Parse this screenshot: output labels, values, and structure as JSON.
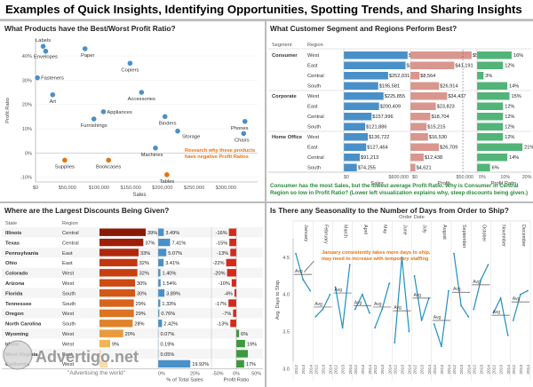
{
  "page_title": "Examples of Quick Insights, Identifying Opportunities, Spotting Trends, and Sharing Insights",
  "colors": {
    "blue": "#4a90c8",
    "orange": "#e8730c",
    "pink": "#d9968e",
    "green": "#52b478",
    "dark_red": "#a5260e"
  },
  "chart_data": [
    {
      "type": "scatter",
      "title": "What Products have the Best/Worst Profit Ratio?",
      "xlabel": "Sales",
      "ylabel": "Profit Ratio",
      "xlim": [
        0,
        350000
      ],
      "ylim": [
        -0.12,
        0.47
      ],
      "xticks": [
        "$0",
        "$50,000",
        "$100,000",
        "$150,000",
        "$200,000",
        "$250,000",
        "$300,000"
      ],
      "yticks": [
        "40%",
        "30%",
        "20%",
        "10%",
        "0%",
        "-10%"
      ],
      "annotation": "Research why these products have negative Profit Ratios",
      "points": [
        {
          "label": "Labels",
          "x": 12000,
          "y": 0.44,
          "color": "blue"
        },
        {
          "label": "Envelopes",
          "x": 16000,
          "y": 0.42,
          "color": "blue"
        },
        {
          "label": "Paper",
          "x": 78000,
          "y": 0.43,
          "color": "blue"
        },
        {
          "label": "Fasteners",
          "x": 3000,
          "y": 0.31,
          "color": "blue"
        },
        {
          "label": "Art",
          "x": 27000,
          "y": 0.24,
          "color": "blue"
        },
        {
          "label": "Copiers",
          "x": 149000,
          "y": 0.37,
          "color": "blue"
        },
        {
          "label": "Accessories",
          "x": 167000,
          "y": 0.25,
          "color": "blue"
        },
        {
          "label": "Appliances",
          "x": 107000,
          "y": 0.17,
          "color": "blue"
        },
        {
          "label": "Furnishings",
          "x": 92000,
          "y": 0.14,
          "color": "blue"
        },
        {
          "label": "Binders",
          "x": 204000,
          "y": 0.15,
          "color": "blue"
        },
        {
          "label": "Storage",
          "x": 224000,
          "y": 0.09,
          "color": "blue"
        },
        {
          "label": "Phones",
          "x": 330000,
          "y": 0.13,
          "color": "blue"
        },
        {
          "label": "Chairs",
          "x": 328000,
          "y": 0.08,
          "color": "blue"
        },
        {
          "label": "Machines",
          "x": 189000,
          "y": 0.02,
          "color": "blue"
        },
        {
          "label": "Supplies",
          "x": 46000,
          "y": -0.03,
          "color": "orange"
        },
        {
          "label": "Bookcases",
          "x": 115000,
          "y": -0.03,
          "color": "orange"
        },
        {
          "label": "Tables",
          "x": 207000,
          "y": -0.09,
          "color": "orange"
        }
      ]
    },
    {
      "type": "bar",
      "title": "What Customer Segment and Regions Perform Best?",
      "columns": [
        "Segment",
        "Region",
        "Sales",
        "Profit",
        "Profit Ratio"
      ],
      "sales_ticks": [
        "$0",
        "$600,000"
      ],
      "profit_ticks": [
        "$0",
        "$50,000"
      ],
      "ratio_ticks": [
        "0%",
        "10%",
        "20%"
      ],
      "rows": [
        {
          "segment": "Consumer",
          "region": "West",
          "sales": 362881,
          "sales_label": "$362,881",
          "profit": 57451,
          "profit_label": "$57,451",
          "ratio": 0.16,
          "ratio_label": "16%"
        },
        {
          "segment": "",
          "region": "East",
          "sales": 350908,
          "sales_label": "$350,908",
          "profit": 41191,
          "profit_label": "$41,191",
          "ratio": 0.12,
          "ratio_label": "12%"
        },
        {
          "segment": "",
          "region": "Central",
          "sales": 252031,
          "sales_label": "$252,031",
          "profit": 8564,
          "profit_label": "$8,564",
          "ratio": 0.03,
          "ratio_label": "3%"
        },
        {
          "segment": "",
          "region": "South",
          "sales": 195581,
          "sales_label": "$195,581",
          "profit": 26914,
          "profit_label": "$26,914",
          "ratio": 0.14,
          "ratio_label": "14%"
        },
        {
          "segment": "Corporate",
          "region": "West",
          "sales": 225855,
          "sales_label": "$225,855",
          "profit": 34437,
          "profit_label": "$34,437",
          "ratio": 0.15,
          "ratio_label": "15%"
        },
        {
          "segment": "",
          "region": "East",
          "sales": 200409,
          "sales_label": "$200,409",
          "profit": 23823,
          "profit_label": "$23,823",
          "ratio": 0.12,
          "ratio_label": "12%"
        },
        {
          "segment": "",
          "region": "Central",
          "sales": 157996,
          "sales_label": "$157,996",
          "profit": 18704,
          "profit_label": "$18,704",
          "ratio": 0.12,
          "ratio_label": "12%"
        },
        {
          "segment": "",
          "region": "South",
          "sales": 121886,
          "sales_label": "$121,886",
          "profit": 15215,
          "profit_label": "$15,215",
          "ratio": 0.12,
          "ratio_label": "12%"
        },
        {
          "segment": "Home Office",
          "region": "West",
          "sales": 136722,
          "sales_label": "$136,722",
          "profit": 16530,
          "profit_label": "$16,530",
          "ratio": 0.12,
          "ratio_label": "12%"
        },
        {
          "segment": "",
          "region": "East",
          "sales": 127464,
          "sales_label": "$127,464",
          "profit": 26709,
          "profit_label": "$26,709",
          "ratio": 0.21,
          "ratio_label": "21%"
        },
        {
          "segment": "",
          "region": "Central",
          "sales": 91213,
          "sales_label": "$91,213",
          "profit": 12438,
          "profit_label": "$12,438",
          "ratio": 0.14,
          "ratio_label": "14%"
        },
        {
          "segment": "",
          "region": "South",
          "sales": 74255,
          "sales_label": "$74,255",
          "profit": 4621,
          "profit_label": "$4,621",
          "ratio": 0.06,
          "ratio_label": "6%"
        }
      ],
      "note": "Consumer has the most Sales, but the lowest average Profit Ratio. Why is Consumer in Central Region so low in Profit Ratio? (Lower left visualization explains why, steep discounts being given.)"
    },
    {
      "type": "bar",
      "title": "Where are the Largest Discounts Being Given?",
      "columns": [
        "State",
        "Region",
        "Discount",
        "% of Total Sales",
        "Profit Ratio"
      ],
      "pct_ticks": [
        "0%",
        "20%"
      ],
      "ratio_ticks": [
        "-50%",
        "0%",
        "50%"
      ],
      "rows": [
        {
          "state": "Illinois",
          "region": "Central",
          "discount": 0.39,
          "discount_label": "39%",
          "pct": 0.0349,
          "pct_label": "3.49%",
          "ratio": -0.16,
          "ratio_label": "-16%"
        },
        {
          "state": "Texas",
          "region": "Central",
          "discount": 0.37,
          "discount_label": "37%",
          "pct": 0.0741,
          "pct_label": "7.41%",
          "ratio": -0.15,
          "ratio_label": "-15%"
        },
        {
          "state": "Pennsylvania",
          "region": "East",
          "discount": 0.33,
          "discount_label": "33%",
          "pct": 0.0507,
          "pct_label": "5.07%",
          "ratio": -0.13,
          "ratio_label": "-13%"
        },
        {
          "state": "Ohio",
          "region": "East",
          "discount": 0.32,
          "discount_label": "32%",
          "pct": 0.0341,
          "pct_label": "3.41%",
          "ratio": -0.22,
          "ratio_label": "-22%"
        },
        {
          "state": "Colorado",
          "region": "West",
          "discount": 0.32,
          "discount_label": "32%",
          "pct": 0.014,
          "pct_label": "1.40%",
          "ratio": -0.2,
          "ratio_label": "-20%"
        },
        {
          "state": "Arizona",
          "region": "West",
          "discount": 0.3,
          "discount_label": "30%",
          "pct": 0.0154,
          "pct_label": "1.54%",
          "ratio": -0.1,
          "ratio_label": "-10%"
        },
        {
          "state": "Florida",
          "region": "South",
          "discount": 0.3,
          "discount_label": "30%",
          "pct": 0.0389,
          "pct_label": "3.89%",
          "ratio": -0.04,
          "ratio_label": "-4%"
        },
        {
          "state": "Tennessee",
          "region": "South",
          "discount": 0.29,
          "discount_label": "29%",
          "pct": 0.0133,
          "pct_label": "1.33%",
          "ratio": -0.17,
          "ratio_label": "-17%"
        },
        {
          "state": "Oregon",
          "region": "West",
          "discount": 0.29,
          "discount_label": "29%",
          "pct": 0.0076,
          "pct_label": "0.76%",
          "ratio": -0.07,
          "ratio_label": "-7%"
        },
        {
          "state": "North Carolina",
          "region": "South",
          "discount": 0.28,
          "discount_label": "28%",
          "pct": 0.0242,
          "pct_label": "2.42%",
          "ratio": -0.13,
          "ratio_label": "-13%"
        },
        {
          "state": "Wyoming",
          "region": "West",
          "discount": 0.2,
          "discount_label": "20%",
          "pct": 0.0007,
          "pct_label": "0.07%",
          "ratio": 0.06,
          "ratio_label": "6%"
        },
        {
          "state": "Idaho",
          "region": "West",
          "discount": 0.09,
          "discount_label": "9%",
          "pct": 0.0019,
          "pct_label": "0.19%",
          "ratio": 0.19,
          "ratio_label": "19%"
        },
        {
          "state": "West Virginia",
          "region": "East",
          "discount": 0.01,
          "discount_label": "",
          "pct": 0.0005,
          "pct_label": "0.05%",
          "ratio": 0.25,
          "ratio_label": ""
        },
        {
          "state": "California",
          "region": "West",
          "discount": 0.07,
          "discount_label": "",
          "pct": 0.1992,
          "pct_label": "19.92%",
          "ratio": 0.17,
          "ratio_label": "17%"
        }
      ]
    },
    {
      "type": "line",
      "title": "Is There any Seasonality to the Number of Days from Order to Ship?",
      "header": "Order Date",
      "ylabel": "Avg. Days to Ship",
      "ylim": [
        3.1,
        4.75
      ],
      "yticks": [
        "4.5",
        "4.0",
        "3.5",
        "3.0"
      ],
      "months": [
        "January",
        "February",
        "March",
        "April",
        "May",
        "June",
        "July",
        "August",
        "September",
        "October",
        "November",
        "December"
      ],
      "years": [
        "2012",
        "2013",
        "2014"
      ],
      "avg_label": "Avg",
      "annotation": "January consistently takes more days to ship, may need to increase with temporary staffing",
      "series": [
        [
          4.55,
          4.2,
          4.05
        ],
        [
          3.7,
          3.8,
          4.0
        ],
        [
          4.1,
          3.55,
          4.4
        ],
        [
          3.8,
          4.0,
          3.75
        ],
        [
          3.55,
          3.8,
          4.15
        ],
        [
          3.35,
          4.5,
          3.5
        ],
        [
          4.25,
          3.65,
          3.95
        ],
        [
          3.6,
          3.3,
          4.05
        ],
        [
          4.55,
          3.85,
          3.7
        ],
        [
          3.8,
          4.2,
          4.4
        ],
        [
          3.75,
          3.95,
          3.45
        ],
        [
          3.65,
          4.0,
          4.05
        ]
      ],
      "averages": [
        4.27,
        3.83,
        4.02,
        3.85,
        3.83,
        3.78,
        3.95,
        3.65,
        4.03,
        4.13,
        3.72,
        3.9
      ]
    }
  ],
  "watermark": {
    "brand": "Advertigo.net",
    "tagline": "\"Advertising the world\""
  }
}
